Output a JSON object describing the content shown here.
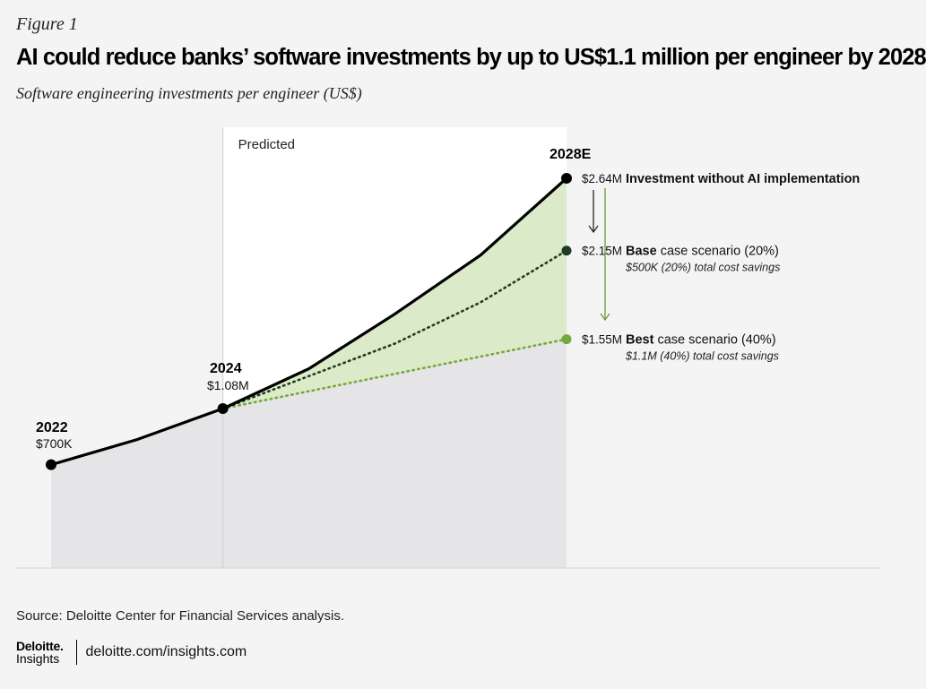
{
  "figure_label": "Figure 1",
  "chart_data": {
    "type": "line",
    "title": "AI could reduce banks’ software investments by up to US$1.1 million per engineer by 2028",
    "subtitle": "Software engineering investments per engineer (US$)",
    "xlabel": "",
    "ylabel": "",
    "x": [
      2022,
      2023,
      2024,
      2025,
      2026,
      2027,
      2028
    ],
    "xlim": [
      2022,
      2028
    ],
    "ylim": [
      0,
      2.85
    ],
    "region_label": "Predicted",
    "predicted_from": 2024,
    "series": [
      {
        "name": "Investment without AI implementation",
        "style": "solid",
        "color": "#000000",
        "x": [
          2022,
          2023,
          2024,
          2025,
          2026,
          2027,
          2028
        ],
        "values": [
          0.7,
          0.87,
          1.08,
          1.35,
          1.72,
          2.12,
          2.64
        ]
      },
      {
        "name": "Base case scenario (20%)",
        "style": "dotted",
        "color": "#1f3b22",
        "x": [
          2024,
          2025,
          2026,
          2027,
          2028
        ],
        "values": [
          1.08,
          1.3,
          1.52,
          1.8,
          2.15
        ]
      },
      {
        "name": "Best case scenario (40%)",
        "style": "dotted",
        "color": "#76a83a",
        "x": [
          2024,
          2028
        ],
        "values": [
          1.08,
          1.55
        ]
      }
    ],
    "point_labels": [
      {
        "year": "2022",
        "value": "$700K"
      },
      {
        "year": "2024",
        "value": "$1.08M"
      },
      {
        "year": "2028E",
        "value": ""
      }
    ],
    "end_labels": [
      {
        "value": "$2.64M",
        "bold": "Investment without AI implementation",
        "rest": "",
        "note": ""
      },
      {
        "value": "$2.15M",
        "bold": "Base",
        "rest": " case scenario (20%)",
        "note": "$500K (20%) total cost savings"
      },
      {
        "value": "$1.55M",
        "bold": "Best",
        "rest": " case scenario (40%)",
        "note": "$1.1M (40%) total cost savings"
      }
    ],
    "colors": {
      "historical_fill": "#e5e5e7",
      "predicted_bg": "#ffffff",
      "savings_fill": "#dbeac9",
      "line_main": "#000000",
      "base_dot": "#1f3b22",
      "best_dot": "#76a83a"
    }
  },
  "source": "Source: Deloitte Center for Financial Services analysis.",
  "brand": {
    "name": "Deloitte.",
    "sub": "Insights",
    "url": "deloitte.com/insights.com"
  }
}
